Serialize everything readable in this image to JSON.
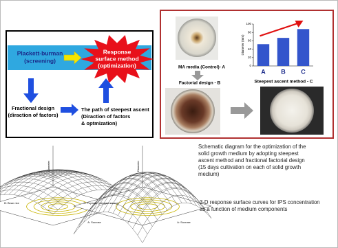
{
  "diagram": {
    "nodes": [
      {
        "lines": [
          "Plackett-burman",
          "(screening)"
        ]
      },
      {
        "lines": [
          "Response",
          "surface method",
          "(optimization)"
        ]
      },
      {
        "lines": [
          "Fractional design",
          "(diraction of factors)"
        ]
      },
      {
        "lines": [
          "The path of steepest ascent",
          "(Diraction of factors",
          "& optmization)"
        ]
      }
    ]
  },
  "photos": [
    {
      "caption": "MA media (Control)- A"
    },
    {
      "caption": "Factorial design - B"
    },
    {
      "caption": "Steepest ascent method - C"
    }
  ],
  "chart_data": {
    "type": "bar",
    "y_label": "Diameter (mm)",
    "categories": [
      "A",
      "B",
      "C"
    ],
    "values": [
      52,
      67,
      88
    ],
    "color": "#3355cc",
    "ylim": [
      0,
      100
    ],
    "yticks": [
      0,
      20,
      40,
      60,
      80,
      100
    ]
  },
  "surfaces": [
    {
      "z_label": "Diameter",
      "x_label": "A: Sucrose",
      "y_label": "B: Bean rice"
    },
    {
      "z_label": "Diameter",
      "x_label": "A: Sucrose",
      "y_label": "C: Peptone (nitrogen source)"
    }
  ],
  "captions": [
    {
      "lines": [
        "Schematic diagram for the optimization of the",
        "solid growth medium by adopting steepest",
        "ascent method and fractional factorial design",
        "(15 days cultivation on each of solid growth",
        "medium)"
      ]
    },
    {
      "lines": [
        "3-D response surface curves for IPS concentration",
        "as a function of medium components"
      ]
    }
  ]
}
